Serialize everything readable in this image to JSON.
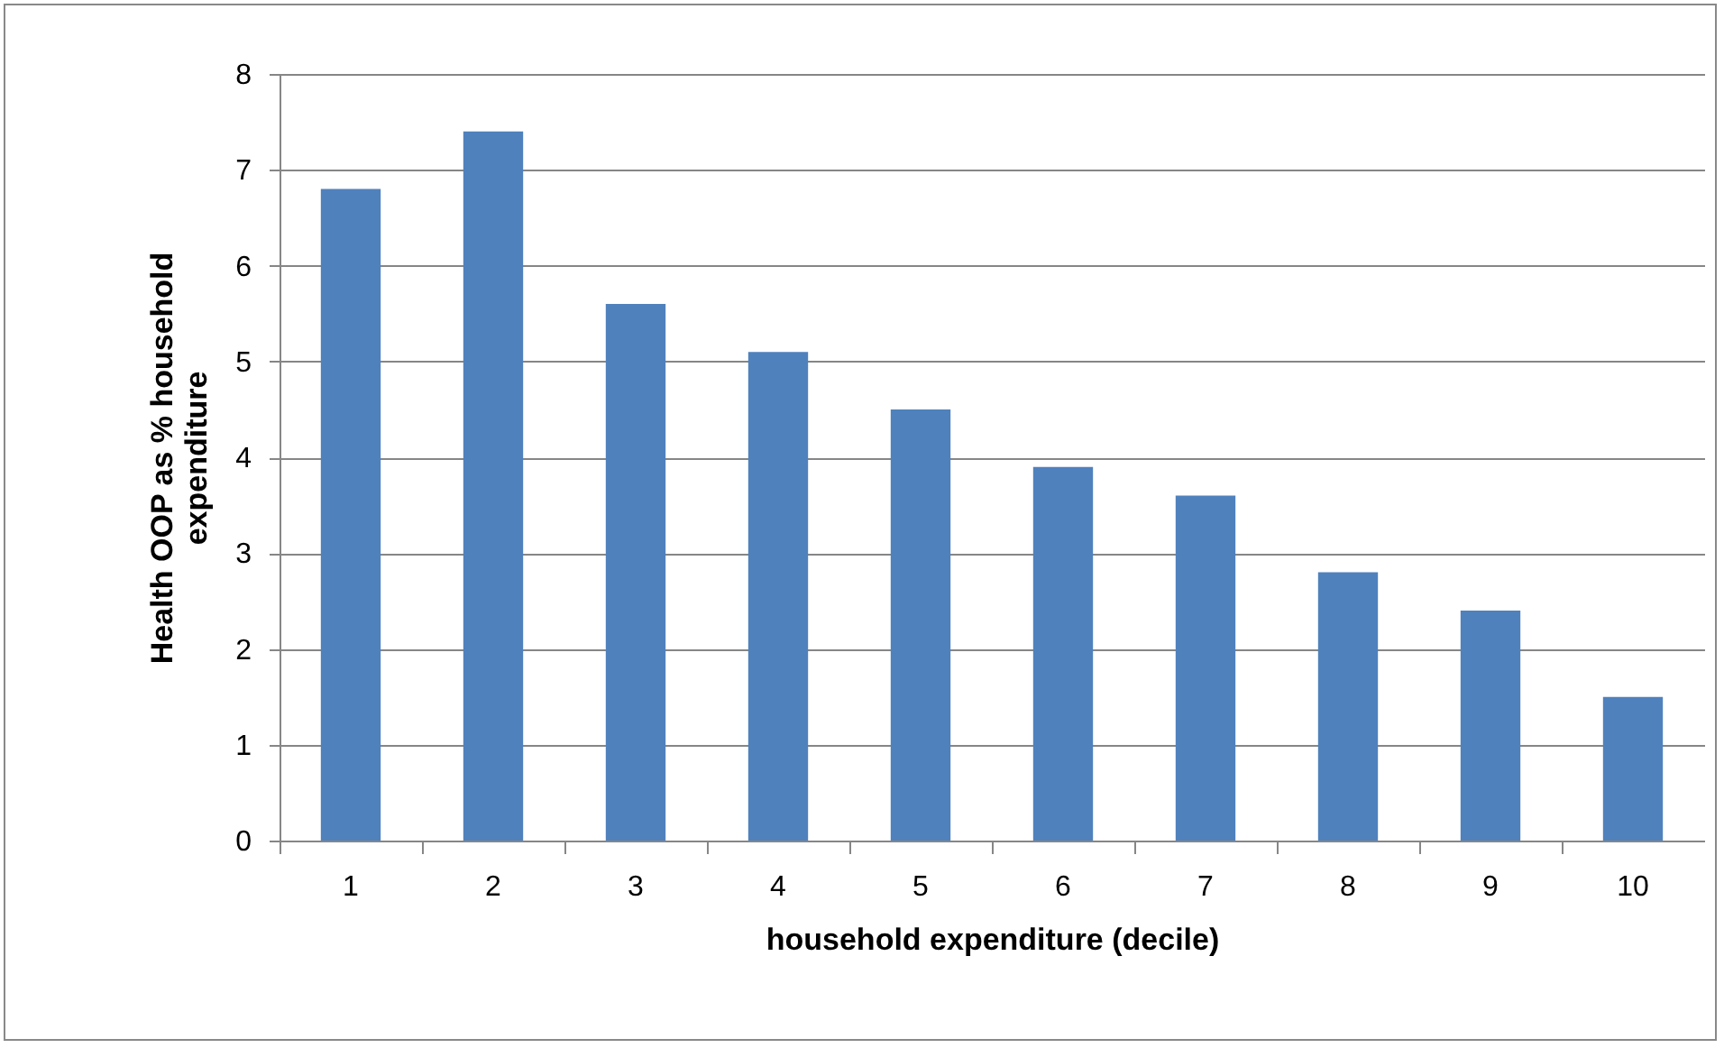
{
  "chart_data": {
    "type": "bar",
    "xlabel": "household expenditure (decile)",
    "ylabel": "Health OOP as % household expenditure",
    "categories": [
      "1",
      "2",
      "3",
      "4",
      "5",
      "6",
      "7",
      "8",
      "9",
      "10"
    ],
    "values": [
      6.8,
      7.4,
      5.6,
      5.1,
      4.5,
      3.9,
      3.6,
      2.8,
      2.4,
      1.5
    ],
    "color": "#4f81bd",
    "ylim": [
      0,
      8
    ],
    "yticks": [
      0,
      1,
      2,
      3,
      4,
      5,
      6,
      7,
      8
    ],
    "grid": "y"
  }
}
